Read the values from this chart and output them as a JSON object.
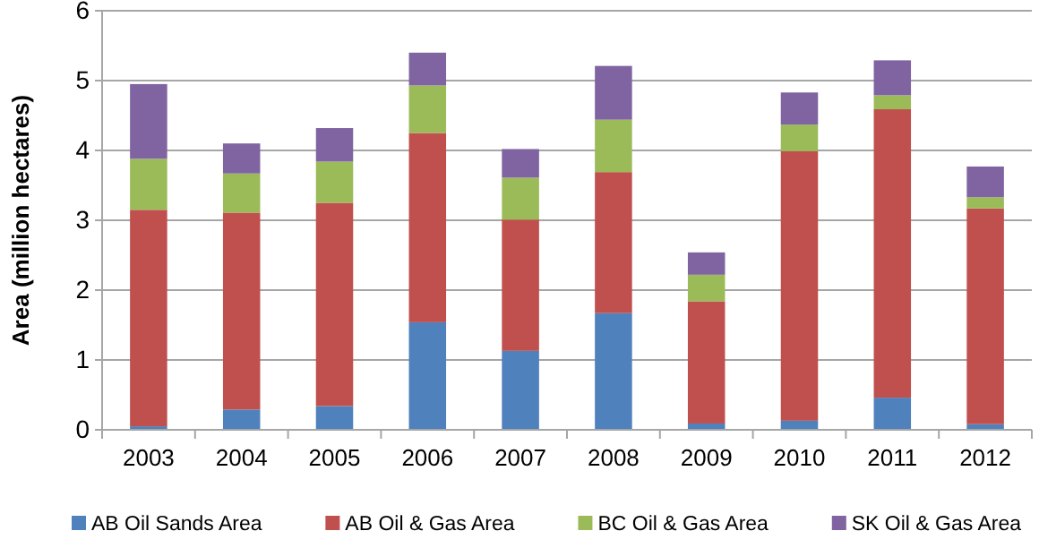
{
  "chart_data": {
    "type": "bar",
    "stacked": true,
    "ylabel": "Area (million hectares)",
    "categories": [
      "2003",
      "2004",
      "2005",
      "2006",
      "2007",
      "2008",
      "2009",
      "2010",
      "2011",
      "2012"
    ],
    "series": [
      {
        "name": "AB Oil Sands Area",
        "color": "#4f81bd",
        "values": [
          0.05,
          0.29,
          0.34,
          1.54,
          1.13,
          1.67,
          0.09,
          0.13,
          0.46,
          0.08
        ]
      },
      {
        "name": "AB Oil & Gas Area",
        "color": "#c0504d",
        "values": [
          3.1,
          2.82,
          2.91,
          2.71,
          1.88,
          2.02,
          1.75,
          3.86,
          4.13,
          3.09
        ]
      },
      {
        "name": "BC Oil & Gas Area",
        "color": "#9bbb59",
        "values": [
          0.73,
          0.56,
          0.59,
          0.68,
          0.6,
          0.75,
          0.38,
          0.38,
          0.2,
          0.16
        ]
      },
      {
        "name": "SK Oil & Gas Area",
        "color": "#8064a2",
        "values": [
          1.07,
          0.43,
          0.48,
          0.47,
          0.41,
          0.77,
          0.32,
          0.46,
          0.5,
          0.44
        ]
      }
    ],
    "ylim": [
      0,
      6
    ],
    "yticks": [
      0,
      1,
      2,
      3,
      4,
      5,
      6
    ],
    "grid": "y",
    "legend": "bottom"
  }
}
